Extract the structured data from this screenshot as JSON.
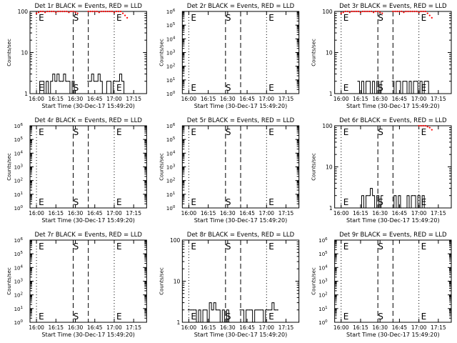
{
  "x_tick_labels": [
    "16:00",
    "16:15",
    "16:30",
    "16:45",
    "17:00",
    "17:15"
  ],
  "xlabel": "Start Time (30-Dec-17 15:49:20)",
  "ylabel": "Counts/sec",
  "colors": {
    "events": "#000000",
    "lld": "#ff0000",
    "axes": "#000000"
  },
  "chart_data": [
    {
      "type": "line",
      "title": "Det 1r BLACK = Events, RED = LLD",
      "xlabel": "Start Time (30-Dec-17 15:49:20)",
      "ylabel": "Counts/sec",
      "yscale": "log",
      "y_tick_labels": [
        "1",
        "10",
        "100"
      ],
      "ylim": [
        1,
        100
      ],
      "xlim": [
        -3,
        51
      ],
      "markers": [
        {
          "label": "E",
          "x": 0
        },
        {
          "label": "S",
          "x": 21
        },
        {
          "label": "E",
          "x": 36
        }
      ],
      "series": [
        {
          "name": "Events",
          "x": [
            1,
            2,
            3,
            4,
            5,
            6,
            7,
            8,
            9,
            10,
            11,
            12,
            13,
            14,
            15,
            16,
            17,
            18,
            19,
            24,
            25,
            26,
            27,
            28,
            29,
            30,
            31,
            32,
            33,
            34,
            35,
            36,
            37,
            38,
            39,
            40,
            41
          ],
          "y": [
            1,
            2,
            2,
            1,
            2,
            1,
            2,
            3,
            2,
            3,
            2,
            2,
            3,
            2,
            2,
            1,
            2,
            1,
            1,
            2,
            2,
            3,
            2,
            2,
            3,
            2,
            1,
            1,
            2,
            2,
            1,
            2,
            2,
            2,
            3,
            2,
            1
          ]
        },
        {
          "name": "LLD",
          "x": [
            0,
            1,
            2,
            3,
            4,
            5,
            6,
            7,
            8,
            9,
            10,
            11,
            12,
            13,
            14,
            15,
            16,
            17,
            18,
            19,
            24,
            25,
            26,
            27,
            28,
            29,
            30,
            31,
            32,
            33,
            34,
            35,
            36,
            37,
            38,
            39,
            40,
            41,
            42
          ],
          "y": [
            90,
            95,
            100,
            100,
            95,
            100,
            100,
            100,
            100,
            95,
            100,
            100,
            100,
            100,
            100,
            95,
            100,
            100,
            95,
            90,
            100,
            100,
            100,
            100,
            100,
            95,
            100,
            100,
            100,
            100,
            100,
            100,
            95,
            100,
            100,
            100,
            90,
            80,
            70
          ]
        }
      ]
    },
    {
      "type": "line",
      "title": "Det 2r BLACK = Events, RED = LLD",
      "xlabel": "Start Time (30-Dec-17 15:49:20)",
      "ylabel": "Counts/sec",
      "yscale": "log",
      "y_tick_labels": [
        "10^0",
        "10^1",
        "10^2",
        "10^3",
        "10^4",
        "10^5",
        "10^6"
      ],
      "ylim": [
        1,
        1000000
      ],
      "xlim": [
        -3,
        51
      ],
      "markers": [
        {
          "label": "E",
          "x": 0
        },
        {
          "label": "S",
          "x": 21
        },
        {
          "label": "E",
          "x": 36
        }
      ],
      "series": []
    },
    {
      "type": "line",
      "title": "Det 3r BLACK = Events, RED = LLD",
      "xlabel": "Start Time (30-Dec-17 15:49:20)",
      "ylabel": "Counts/sec",
      "yscale": "log",
      "y_tick_labels": [
        "1",
        "10",
        "100"
      ],
      "ylim": [
        1,
        100
      ],
      "xlim": [
        -3,
        51
      ],
      "markers": [
        {
          "label": "E",
          "x": 0
        },
        {
          "label": "S",
          "x": 21
        },
        {
          "label": "E",
          "x": 36
        }
      ],
      "series": [
        {
          "name": "Events",
          "x": [
            8,
            9,
            10,
            11,
            12,
            13,
            14,
            15,
            16,
            17,
            18,
            19,
            24,
            25,
            26,
            27,
            28,
            29,
            30,
            31,
            32,
            33,
            34,
            35,
            36,
            37,
            38,
            39,
            40,
            41
          ],
          "y": [
            2,
            1,
            2,
            1,
            2,
            2,
            1,
            2,
            1,
            2,
            1,
            2,
            2,
            1,
            2,
            2,
            1,
            2,
            2,
            1,
            2,
            1,
            2,
            2,
            1,
            2,
            1,
            2,
            2,
            1
          ]
        },
        {
          "name": "LLD",
          "x": [
            0,
            1,
            2,
            3,
            4,
            5,
            6,
            7,
            8,
            9,
            10,
            11,
            12,
            13,
            14,
            15,
            16,
            17,
            18,
            19,
            24,
            25,
            26,
            27,
            28,
            29,
            30,
            31,
            32,
            33,
            34,
            35,
            36,
            37,
            38,
            39,
            40,
            41,
            42
          ],
          "y": [
            90,
            95,
            100,
            100,
            95,
            100,
            100,
            100,
            100,
            95,
            100,
            100,
            100,
            100,
            100,
            95,
            100,
            100,
            95,
            90,
            100,
            100,
            100,
            100,
            100,
            95,
            100,
            100,
            100,
            100,
            100,
            100,
            95,
            100,
            100,
            100,
            90,
            80,
            70
          ]
        }
      ]
    },
    {
      "type": "line",
      "title": "Det 4r BLACK = Events, RED = LLD",
      "xlabel": "Start Time (30-Dec-17 15:49:20)",
      "ylabel": "Counts/sec",
      "yscale": "log",
      "y_tick_labels": [
        "10^0",
        "10^1",
        "10^2",
        "10^3",
        "10^4",
        "10^5",
        "10^6"
      ],
      "ylim": [
        1,
        1000000
      ],
      "xlim": [
        -3,
        51
      ],
      "markers": [
        {
          "label": "E",
          "x": 0
        },
        {
          "label": "S",
          "x": 21
        },
        {
          "label": "E",
          "x": 36
        }
      ],
      "series": []
    },
    {
      "type": "line",
      "title": "Det 5r BLACK = Events, RED = LLD",
      "xlabel": "Start Time (30-Dec-17 15:49:20)",
      "ylabel": "Counts/sec",
      "yscale": "log",
      "y_tick_labels": [
        "10^0",
        "10^1",
        "10^2",
        "10^3",
        "10^4",
        "10^5",
        "10^6"
      ],
      "ylim": [
        1,
        1000000
      ],
      "xlim": [
        -3,
        51
      ],
      "markers": [
        {
          "label": "E",
          "x": 0
        },
        {
          "label": "S",
          "x": 21
        },
        {
          "label": "E",
          "x": 36
        }
      ],
      "series": []
    },
    {
      "type": "line",
      "title": "Det 6r BLACK = Events, RED = LLD",
      "xlabel": "Start Time (30-Dec-17 15:49:20)",
      "ylabel": "Counts/sec",
      "yscale": "log",
      "y_tick_labels": [
        "1",
        "10",
        "100"
      ],
      "ylim": [
        1,
        100
      ],
      "xlim": [
        -3,
        51
      ],
      "markers": [
        {
          "label": "E",
          "x": 0
        },
        {
          "label": "S",
          "x": 21
        },
        {
          "label": "E",
          "x": 36
        }
      ],
      "series": [
        {
          "name": "Events",
          "x": [
            9,
            10,
            11,
            12,
            13,
            14,
            15,
            16,
            17,
            18,
            19,
            24,
            25,
            26,
            27,
            28,
            29,
            30,
            31,
            32,
            33,
            34,
            35,
            36,
            37,
            38,
            39,
            40,
            41
          ],
          "y": [
            1,
            2,
            1,
            2,
            2,
            3,
            2,
            1,
            2,
            1,
            2,
            1,
            2,
            1,
            2,
            1,
            1,
            1,
            2,
            1,
            2,
            2,
            1,
            2,
            1,
            2,
            1,
            1,
            1
          ]
        },
        {
          "name": "LLD",
          "x": [
            36,
            37,
            38,
            39,
            40,
            41,
            42
          ],
          "y": [
            100,
            100,
            100,
            100,
            95,
            90,
            80
          ]
        }
      ]
    },
    {
      "type": "line",
      "title": "Det 7r BLACK = Events, RED = LLD",
      "xlabel": "Start Time (30-Dec-17 15:49:20)",
      "ylabel": "Counts/sec",
      "yscale": "log",
      "y_tick_labels": [
        "10^0",
        "10^1",
        "10^2",
        "10^3",
        "10^4",
        "10^5",
        "10^6"
      ],
      "ylim": [
        1,
        1000000
      ],
      "xlim": [
        -3,
        51
      ],
      "markers": [
        {
          "label": "E",
          "x": 0
        },
        {
          "label": "S",
          "x": 21
        },
        {
          "label": "E",
          "x": 36
        }
      ],
      "series": []
    },
    {
      "type": "line",
      "title": "Det 8r BLACK = Events, RED = LLD",
      "xlabel": "Start Time (30-Dec-17 15:49:20)",
      "ylabel": "Counts/sec",
      "yscale": "log",
      "y_tick_labels": [
        "1",
        "10",
        "100"
      ],
      "ylim": [
        1,
        100
      ],
      "xlim": [
        -3,
        51
      ],
      "markers": [
        {
          "label": "E",
          "x": 0
        },
        {
          "label": "S",
          "x": 21
        },
        {
          "label": "E",
          "x": 36
        }
      ],
      "series": [
        {
          "name": "Events",
          "x": [
            0,
            1,
            2,
            3,
            4,
            5,
            6,
            7,
            8,
            9,
            10,
            11,
            12,
            13,
            14,
            15,
            16,
            17,
            18,
            19,
            24,
            25,
            26,
            27,
            28,
            29,
            30,
            31,
            32,
            33,
            34,
            35,
            36,
            37,
            38,
            39,
            40,
            41
          ],
          "y": [
            2,
            2,
            2,
            2,
            1,
            2,
            1,
            2,
            2,
            1,
            3,
            2,
            3,
            2,
            2,
            1,
            2,
            1,
            2,
            1,
            2,
            2,
            1,
            2,
            2,
            2,
            1,
            2,
            2,
            2,
            2,
            1,
            2,
            2,
            2,
            3,
            2,
            2
          ]
        }
      ]
    },
    {
      "type": "line",
      "title": "Det 9r BLACK = Events, RED = LLD",
      "xlabel": "Start Time (30-Dec-17 15:49:20)",
      "ylabel": "Counts/sec",
      "yscale": "log",
      "y_tick_labels": [
        "10^0",
        "10^1",
        "10^2",
        "10^3",
        "10^4",
        "10^5",
        "10^6"
      ],
      "ylim": [
        1,
        1000000
      ],
      "xlim": [
        -3,
        51
      ],
      "markers": [
        {
          "label": "E",
          "x": 0
        },
        {
          "label": "S",
          "x": 21
        },
        {
          "label": "E",
          "x": 36
        }
      ],
      "series": []
    }
  ]
}
